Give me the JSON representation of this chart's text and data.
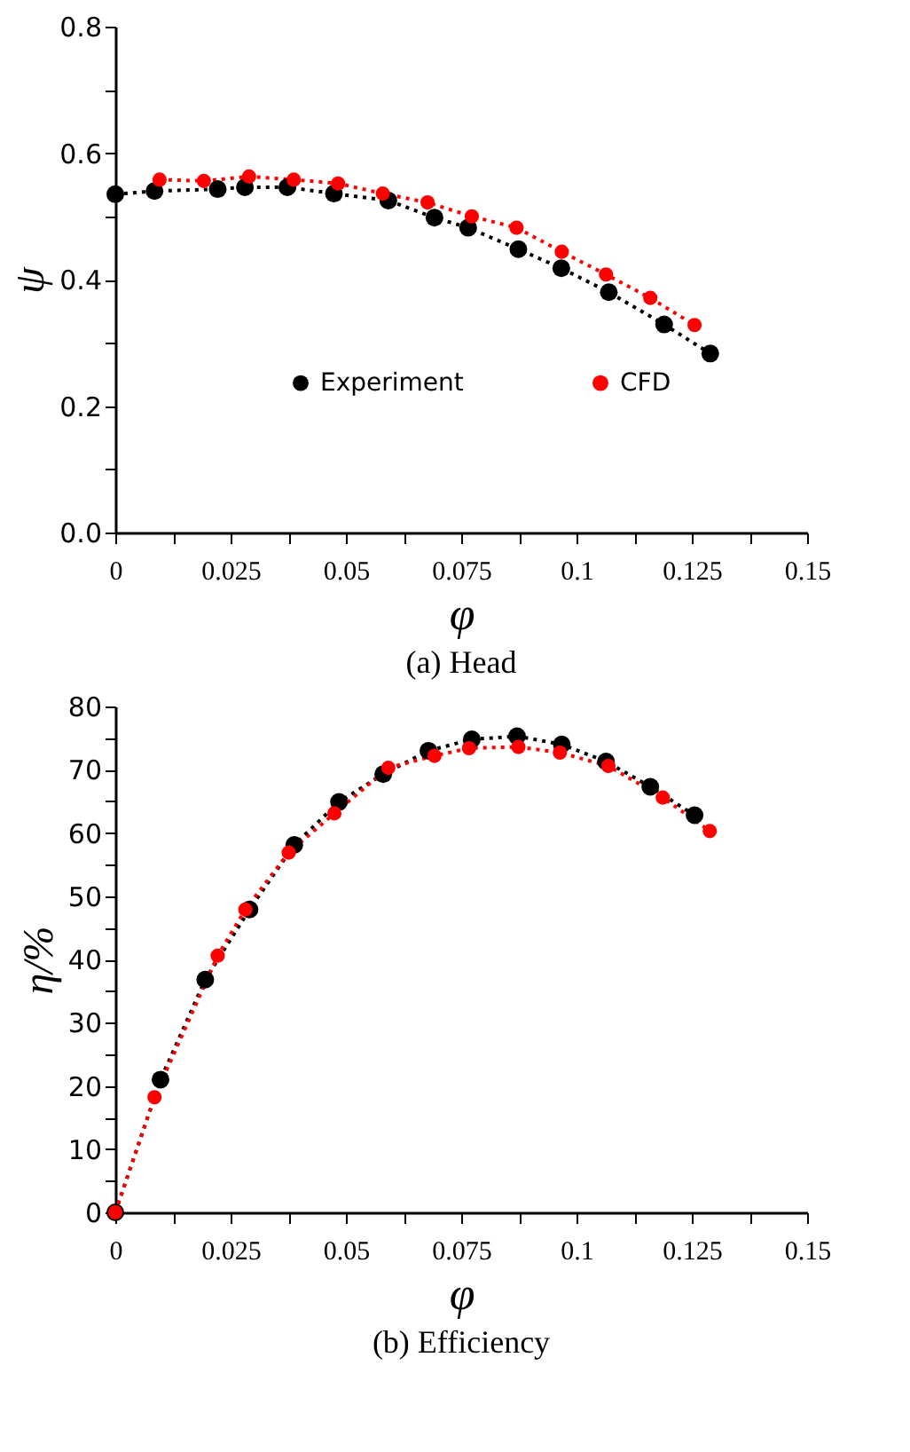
{
  "chart_data": [
    {
      "type": "line",
      "title": "(a) Head",
      "xlabel": "φ",
      "ylabel": "ψ",
      "marker": "circle",
      "line_style": "dotted",
      "legend": "bottom",
      "grid": false,
      "xlim": [
        0,
        0.15
      ],
      "ylim": [
        0,
        0.8
      ],
      "xticks": [
        0,
        {
          "value": 0.0125,
          "label": null
        },
        0.025,
        {
          "value": 0.0375,
          "label": null
        },
        0.05,
        {
          "value": 0.0625,
          "label": null
        },
        0.075,
        {
          "value": 0.0875,
          "label": null
        },
        0.1,
        {
          "value": 0.1125,
          "label": null
        },
        0.125,
        {
          "value": 0.1375,
          "label": null
        },
        0.15
      ],
      "yticks": [
        {
          "value": 0,
          "label": "0.0"
        },
        {
          "value": 0.1,
          "label": null
        },
        0.2,
        {
          "value": 0.3,
          "label": null
        },
        0.4,
        {
          "value": 0.5,
          "label": null
        },
        0.6,
        {
          "value": 0.7,
          "label": null
        },
        0.8
      ],
      "series": [
        {
          "name": "Experiment",
          "color": "#000000",
          "x": [
            0,
            0.0085,
            0.0222,
            0.0281,
            0.0373,
            0.0474,
            0.0592,
            0.0692,
            0.0765,
            0.0874,
            0.0967,
            0.107,
            0.119,
            0.129
          ],
          "values": [
            0.535,
            0.54,
            0.543,
            0.546,
            0.546,
            0.536,
            0.525,
            0.498,
            0.482,
            0.448,
            0.418,
            0.38,
            0.329,
            0.283
          ]
        },
        {
          "name": "CFD",
          "color": "#ff0000",
          "x": [
            0.0096,
            0.0192,
            0.029,
            0.0387,
            0.0483,
            0.058,
            0.0677,
            0.0773,
            0.087,
            0.0968,
            0.1064,
            0.116,
            0.1256
          ],
          "values": [
            0.558,
            0.556,
            0.563,
            0.558,
            0.552,
            0.536,
            0.522,
            0.5,
            0.482,
            0.444,
            0.408,
            0.371,
            0.328
          ]
        }
      ]
    },
    {
      "type": "line",
      "title": "(b) Efficiency",
      "xlabel": "φ",
      "ylabel": "η/%",
      "marker": "circle",
      "line_style": "dotted",
      "legend": "bottom",
      "grid": false,
      "xlim": [
        0,
        0.15
      ],
      "ylim": [
        0,
        80
      ],
      "xticks": [
        0,
        {
          "value": 0.0125,
          "label": null
        },
        0.025,
        {
          "value": 0.0375,
          "label": null
        },
        0.05,
        {
          "value": 0.0625,
          "label": null
        },
        0.075,
        {
          "value": 0.0875,
          "label": null
        },
        0.1,
        {
          "value": 0.1125,
          "label": null
        },
        0.125,
        {
          "value": 0.1375,
          "label": null
        },
        0.15
      ],
      "yticks": [
        0,
        {
          "value": 5,
          "label": null
        },
        10,
        {
          "value": 15,
          "label": null
        },
        20,
        {
          "value": 25,
          "label": null
        },
        30,
        {
          "value": 35,
          "label": null
        },
        40,
        {
          "value": 45,
          "label": null
        },
        50,
        {
          "value": 55,
          "label": null
        },
        60,
        {
          "value": 65,
          "label": null
        },
        70,
        {
          "value": 75,
          "label": null
        },
        80
      ],
      "series": [
        {
          "name": "Experiment",
          "color": "#000000",
          "x": [
            0,
            0.0098,
            0.0195,
            0.0291,
            0.0388,
            0.0485,
            0.0581,
            0.0679,
            0.0773,
            0.0871,
            0.0968,
            0.1064,
            0.116,
            0.1256
          ],
          "values": [
            0,
            21.0,
            36.8,
            47.9,
            58.1,
            64.9,
            69.3,
            73.0,
            74.8,
            75.3,
            74.0,
            71.3,
            67.3,
            62.8
          ]
        },
        {
          "name": "CFD",
          "color": "#ff0000",
          "x": [
            0,
            0.0085,
            0.0222,
            0.0282,
            0.0376,
            0.0475,
            0.0592,
            0.0692,
            0.0767,
            0.0874,
            0.0964,
            0.1069,
            0.1187,
            0.1289
          ],
          "values": [
            0,
            18.2,
            40.6,
            47.9,
            56.9,
            63.1,
            70.3,
            72.2,
            73.4,
            73.6,
            72.7,
            70.6,
            65.6,
            60.3
          ]
        }
      ]
    }
  ]
}
